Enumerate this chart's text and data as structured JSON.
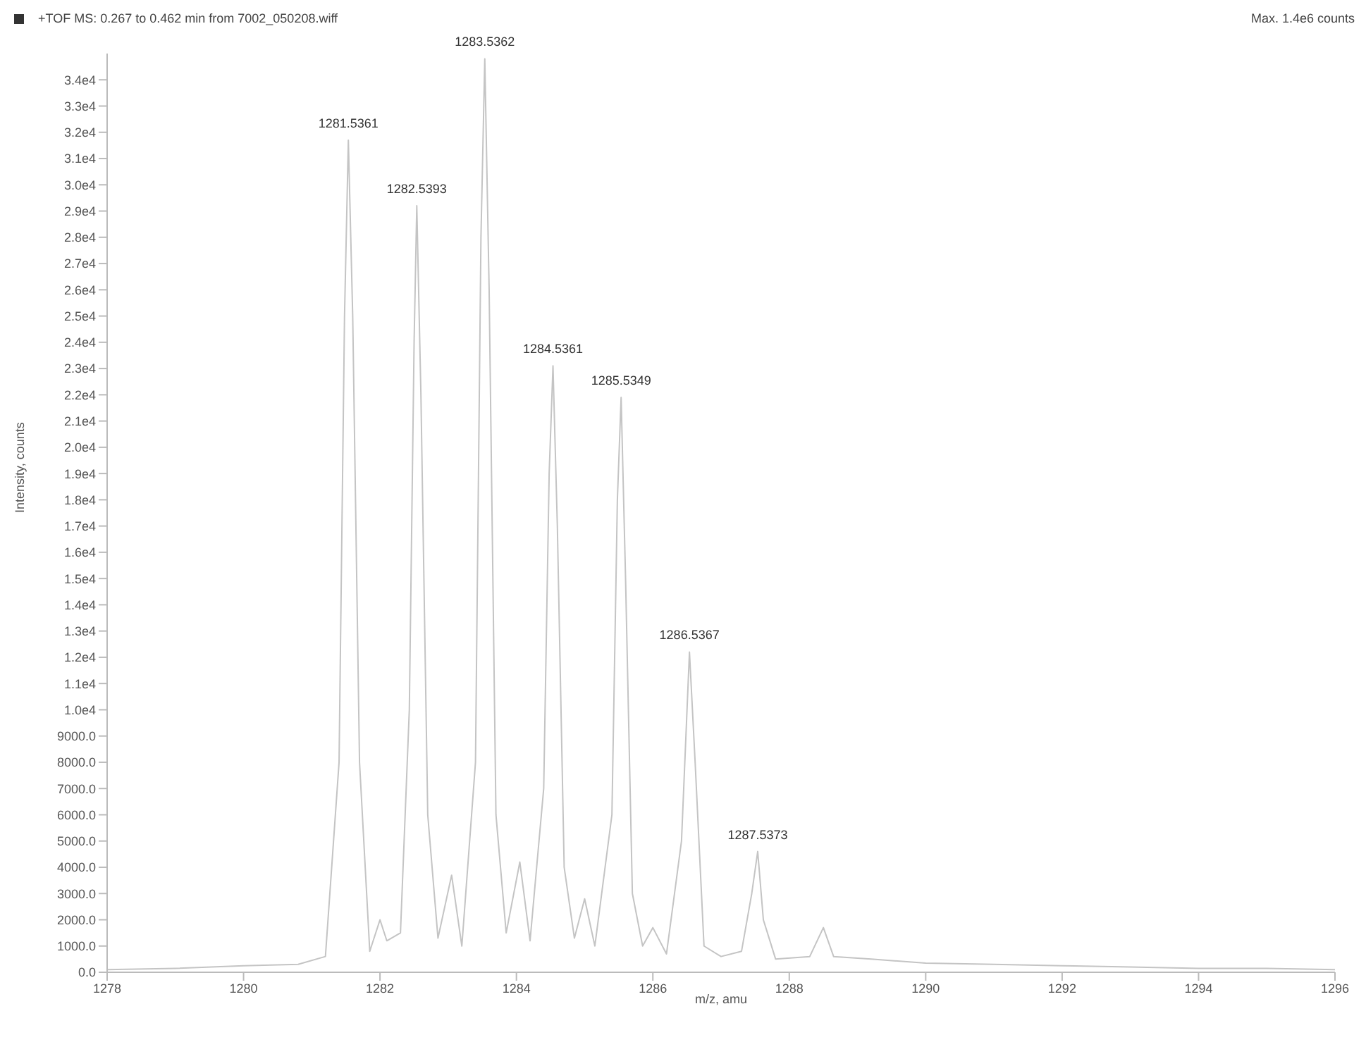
{
  "chart_data": {
    "type": "line",
    "title": "+TOF MS: 0.267 to 0.462 min from 7002_050208.wiff",
    "xlabel": "m/z, amu",
    "ylabel": "Intensity, counts",
    "annotations": [
      "Max. 1.4e6 counts",
      {
        "text": "1281.5361",
        "x": 1281.5361,
        "y": 31700
      },
      {
        "text": "1282.5393",
        "x": 1282.5393,
        "y": 29200
      },
      {
        "text": "1283.5362",
        "x": 1283.5362,
        "y": 34800
      },
      {
        "text": "1284.5361",
        "x": 1284.5361,
        "y": 23100
      },
      {
        "text": "1285.5349",
        "x": 1285.5349,
        "y": 21900
      },
      {
        "text": "1286.5367",
        "x": 1286.5367,
        "y": 12200
      },
      {
        "text": "1287.5373",
        "x": 1287.5373,
        "y": 4600
      }
    ],
    "x": [
      1278.0,
      1279.0,
      1280.0,
      1280.8,
      1281.2,
      1281.4,
      1281.48,
      1281.5361,
      1281.6,
      1281.7,
      1281.85,
      1282.0,
      1282.1,
      1282.3,
      1282.43,
      1282.5,
      1282.5393,
      1282.6,
      1282.7,
      1282.85,
      1283.05,
      1283.2,
      1283.4,
      1283.48,
      1283.5362,
      1283.6,
      1283.7,
      1283.85,
      1284.05,
      1284.2,
      1284.4,
      1284.48,
      1284.5361,
      1284.6,
      1284.7,
      1284.85,
      1285.0,
      1285.15,
      1285.4,
      1285.48,
      1285.5349,
      1285.6,
      1285.7,
      1285.85,
      1286.0,
      1286.2,
      1286.42,
      1286.5367,
      1286.62,
      1286.75,
      1287.0,
      1287.3,
      1287.45,
      1287.5373,
      1287.62,
      1287.8,
      1288.3,
      1288.5,
      1288.65,
      1289.2,
      1290.0,
      1291.0,
      1292.0,
      1293.0,
      1294.0,
      1295.0,
      1296.0
    ],
    "series": [
      {
        "color": "#c4c4c4",
        "values": [
          100,
          150,
          250,
          300,
          600,
          8000,
          25000,
          31700,
          25000,
          8000,
          800,
          2000,
          1200,
          1500,
          10000,
          24000,
          29200,
          22000,
          6000,
          1300,
          3700,
          1000,
          8000,
          28000,
          34800,
          26000,
          6000,
          1500,
          4200,
          1200,
          7000,
          19000,
          23100,
          17000,
          4000,
          1300,
          2800,
          1000,
          6000,
          18000,
          21900,
          15000,
          3000,
          1000,
          1700,
          700,
          5000,
          12200,
          8000,
          1000,
          600,
          800,
          3000,
          4600,
          2000,
          500,
          600,
          1700,
          600,
          500,
          350,
          300,
          250,
          200,
          150,
          150,
          100
        ]
      }
    ],
    "xlim": [
      1278,
      1296
    ],
    "xticks": [
      1278,
      1280,
      1282,
      1284,
      1286,
      1288,
      1290,
      1292,
      1294,
      1296
    ],
    "ylim": [
      0,
      35000
    ],
    "yticks": [
      {
        "value": 0,
        "label": "0.0"
      },
      {
        "value": 1000,
        "label": "1000.0"
      },
      {
        "value": 2000,
        "label": "2000.0"
      },
      {
        "value": 3000,
        "label": "3000.0"
      },
      {
        "value": 4000,
        "label": "4000.0"
      },
      {
        "value": 5000,
        "label": "5000.0"
      },
      {
        "value": 6000,
        "label": "6000.0"
      },
      {
        "value": 7000,
        "label": "7000.0"
      },
      {
        "value": 8000,
        "label": "8000.0"
      },
      {
        "value": 9000,
        "label": "9000.0"
      },
      {
        "value": 10000,
        "label": "1.0e4"
      },
      {
        "value": 11000,
        "label": "1.1e4"
      },
      {
        "value": 12000,
        "label": "1.2e4"
      },
      {
        "value": 13000,
        "label": "1.3e4"
      },
      {
        "value": 14000,
        "label": "1.4e4"
      },
      {
        "value": 15000,
        "label": "1.5e4"
      },
      {
        "value": 16000,
        "label": "1.6e4"
      },
      {
        "value": 17000,
        "label": "1.7e4"
      },
      {
        "value": 18000,
        "label": "1.8e4"
      },
      {
        "value": 19000,
        "label": "1.9e4"
      },
      {
        "value": 20000,
        "label": "2.0e4"
      },
      {
        "value": 21000,
        "label": "2.1e4"
      },
      {
        "value": 22000,
        "label": "2.2e4"
      },
      {
        "value": 23000,
        "label": "2.3e4"
      },
      {
        "value": 24000,
        "label": "2.4e4"
      },
      {
        "value": 25000,
        "label": "2.5e4"
      },
      {
        "value": 26000,
        "label": "2.6e4"
      },
      {
        "value": 27000,
        "label": "2.7e4"
      },
      {
        "value": 28000,
        "label": "2.8e4"
      },
      {
        "value": 29000,
        "label": "2.9e4"
      },
      {
        "value": 30000,
        "label": "3.0e4"
      },
      {
        "value": 31000,
        "label": "3.1e4"
      },
      {
        "value": 32000,
        "label": "3.2e4"
      },
      {
        "value": 33000,
        "label": "3.3e4"
      },
      {
        "value": 34000,
        "label": "3.4e4"
      }
    ],
    "grid": false,
    "legend": false
  }
}
